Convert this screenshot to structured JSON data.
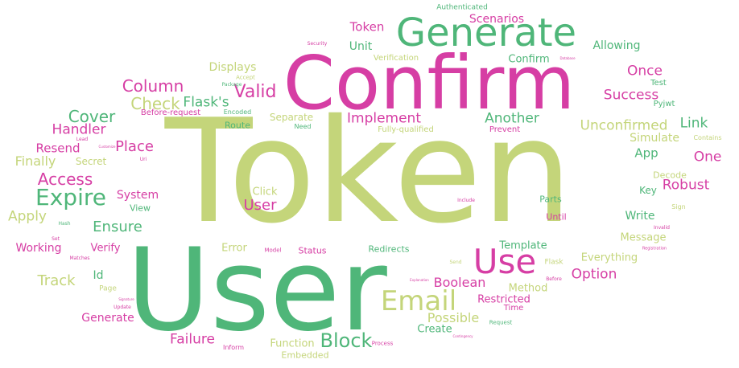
{
  "palette": {
    "pink": "#d63ea4",
    "green": "#4fb679",
    "olive": "#c4d57a",
    "light_pink": "#e890c8",
    "light_green": "#9bd4ae"
  },
  "words": [
    {
      "text": "Token",
      "color": "olive"
    },
    {
      "text": "User",
      "color": "green"
    },
    {
      "text": "Confirm",
      "color": "pink"
    },
    {
      "text": "Generate",
      "color": "green"
    },
    {
      "text": "Use",
      "color": "pink"
    },
    {
      "text": "Email",
      "color": "olive"
    },
    {
      "text": "Expire",
      "color": "green"
    },
    {
      "text": "Block",
      "color": "green"
    },
    {
      "text": "Valid",
      "color": "pink"
    },
    {
      "text": "Access",
      "color": "pink"
    },
    {
      "text": "Cover",
      "color": "green"
    },
    {
      "text": "Check",
      "color": "olive"
    },
    {
      "text": "Column",
      "color": "pink"
    },
    {
      "text": "Flask's",
      "color": "green"
    },
    {
      "text": "Implement",
      "color": "pink"
    },
    {
      "text": "Another",
      "color": "green"
    },
    {
      "text": "Success",
      "color": "pink"
    },
    {
      "text": "Unconfirmed",
      "color": "olive"
    },
    {
      "text": "Link",
      "color": "green"
    },
    {
      "text": "Once",
      "color": "pink"
    },
    {
      "text": "Handler",
      "color": "pink"
    },
    {
      "text": "Resend",
      "color": "pink"
    },
    {
      "text": "Place",
      "color": "pink"
    },
    {
      "text": "Finally",
      "color": "olive"
    },
    {
      "text": "Apply",
      "color": "olive"
    },
    {
      "text": "Ensure",
      "color": "green"
    },
    {
      "text": "Robust",
      "color": "pink"
    },
    {
      "text": "One",
      "color": "pink"
    },
    {
      "text": "App",
      "color": "green"
    },
    {
      "text": "Simulate",
      "color": "olive"
    },
    {
      "text": "Option",
      "color": "pink"
    },
    {
      "text": "Boolean",
      "color": "pink"
    },
    {
      "text": "Possible",
      "color": "olive"
    },
    {
      "text": "Track",
      "color": "olive"
    },
    {
      "text": "Failure",
      "color": "pink"
    },
    {
      "text": "Function",
      "color": "olive"
    },
    {
      "text": "Restricted",
      "color": "pink"
    },
    {
      "text": "Write",
      "color": "green"
    },
    {
      "text": "Message",
      "color": "olive"
    },
    {
      "text": "Everything",
      "color": "olive"
    },
    {
      "text": "Template",
      "color": "green"
    },
    {
      "text": "Token",
      "color": "pink"
    },
    {
      "text": "Scenarios",
      "color": "pink"
    },
    {
      "text": "Unit",
      "color": "green"
    },
    {
      "text": "Allowing",
      "color": "green"
    },
    {
      "text": "Displays",
      "color": "olive"
    },
    {
      "text": "Confirm",
      "color": "green"
    },
    {
      "text": "User",
      "color": "pink"
    },
    {
      "text": "System",
      "color": "pink"
    },
    {
      "text": "Verify",
      "color": "pink"
    },
    {
      "text": "Working",
      "color": "pink"
    },
    {
      "text": "Id",
      "color": "green"
    },
    {
      "text": "Generate",
      "color": "pink"
    },
    {
      "text": "Create",
      "color": "green"
    },
    {
      "text": "Method",
      "color": "olive"
    },
    {
      "text": "Click",
      "color": "olive"
    },
    {
      "text": "Error",
      "color": "olive"
    },
    {
      "text": "Key",
      "color": "green"
    },
    {
      "text": "Separate",
      "color": "olive"
    },
    {
      "text": "Secret",
      "color": "olive"
    },
    {
      "text": "View",
      "color": "green"
    },
    {
      "text": "Route",
      "color": "green"
    },
    {
      "text": "Parts",
      "color": "green"
    },
    {
      "text": "Until",
      "color": "pink"
    },
    {
      "text": "Decode",
      "color": "olive"
    },
    {
      "text": "Redirects",
      "color": "green"
    },
    {
      "text": "Status",
      "color": "pink"
    },
    {
      "text": "Embedded",
      "color": "olive"
    },
    {
      "text": "Test",
      "color": "green"
    },
    {
      "text": "Pyjwt",
      "color": "green"
    },
    {
      "text": "Prevent",
      "color": "pink"
    },
    {
      "text": "Fully-qualified",
      "color": "olive"
    },
    {
      "text": "Verification",
      "color": "olive"
    },
    {
      "text": "Authenticated",
      "color": "green"
    },
    {
      "text": "Time",
      "color": "pink"
    },
    {
      "text": "Flask",
      "color": "olive"
    },
    {
      "text": "Before-request",
      "color": "pink"
    },
    {
      "text": "Page",
      "color": "olive"
    },
    {
      "text": "Need",
      "color": "green"
    },
    {
      "text": "Encoded",
      "color": "green"
    },
    {
      "text": "Accept",
      "color": "olive"
    },
    {
      "text": "Sign",
      "color": "olive"
    },
    {
      "text": "Contains",
      "color": "olive"
    },
    {
      "text": "Inform",
      "color": "pink"
    },
    {
      "text": "Process",
      "color": "pink"
    },
    {
      "text": "Request",
      "color": "green"
    },
    {
      "text": "Security",
      "color": "pink"
    },
    {
      "text": "Include",
      "color": "pink"
    },
    {
      "text": "Model",
      "color": "pink"
    },
    {
      "text": "Matches",
      "color": "pink"
    },
    {
      "text": "Update",
      "color": "pink"
    },
    {
      "text": "Hash",
      "color": "green"
    },
    {
      "text": "Lead",
      "color": "pink"
    },
    {
      "text": "Uri",
      "color": "pink"
    },
    {
      "text": "Invalid",
      "color": "pink"
    },
    {
      "text": "Registration",
      "color": "pink"
    },
    {
      "text": "Set",
      "color": "pink"
    },
    {
      "text": "Package",
      "color": "green"
    },
    {
      "text": "Send",
      "color": "olive"
    },
    {
      "text": "Before",
      "color": "pink"
    },
    {
      "text": "Customize",
      "color": "pink"
    },
    {
      "text": "Contingency",
      "color": "pink"
    },
    {
      "text": "Signature",
      "color": "pink"
    },
    {
      "text": "Explanation",
      "color": "pink"
    },
    {
      "text": "Database",
      "color": "pink"
    }
  ]
}
